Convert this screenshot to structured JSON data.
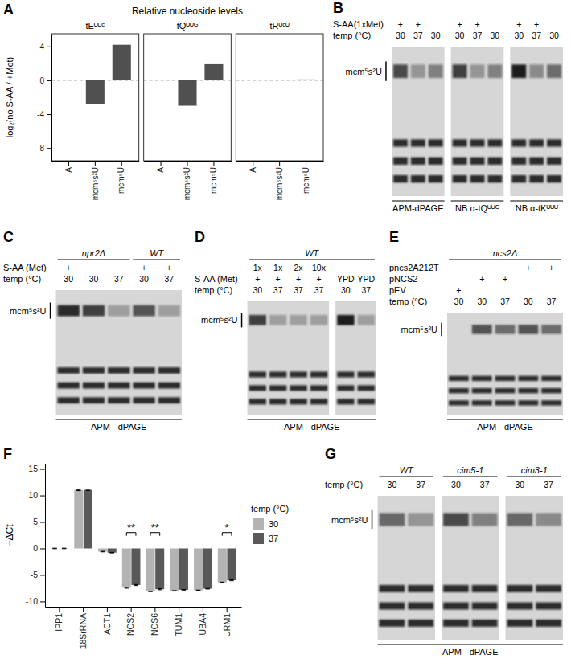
{
  "chart_data": [
    {
      "type": "bar",
      "panel": "A",
      "suptitle": "Relative nucleoside levels",
      "title": "tEᵁᵁᶜ",
      "ylabel": "log₂(no S-AA / +Met)",
      "categories": [
        "A",
        "mcm⁵s²U",
        "mcm⁵U"
      ],
      "values": [
        0,
        -2.8,
        4.2
      ],
      "color": "#505050",
      "ylim": [
        -9.5,
        5.5
      ],
      "yticks": [
        -8,
        -4,
        0,
        4
      ],
      "reference_line": 0,
      "grid": false
    },
    {
      "type": "bar",
      "title": "tQᵁᵁᴳ",
      "categories": [
        "A",
        "mcm⁵s²U",
        "mcm⁵U"
      ],
      "values": [
        0,
        -3.0,
        1.9
      ],
      "color": "#505050",
      "ylim": [
        -9.5,
        5.5
      ],
      "reference_line": 0,
      "tick_labels": "x",
      "grid": false
    },
    {
      "type": "bar",
      "title": "tRᵁᶜᵁ",
      "categories": [
        "A",
        "mcm⁵s²U",
        "mcm⁵U"
      ],
      "values": [
        0,
        0,
        0.1
      ],
      "color": "#505050",
      "ylim": [
        -9.5,
        5.5
      ],
      "reference_line": 0,
      "tick_labels": "x",
      "grid": false
    },
    {
      "type": "bar",
      "panel": "F",
      "ylabel": "−ΔCt",
      "categories": [
        "IPP1",
        "18SrRNA",
        "ACT1",
        "NCS2",
        "NCS6",
        "TUM1",
        "UBA4",
        "URM1"
      ],
      "series": [
        {
          "name": "30",
          "color": "#b3b3b3",
          "values": [
            0,
            11,
            -0.6,
            -7.4,
            -8.1,
            -8.0,
            -7.9,
            -6.4
          ],
          "errors": [
            0.05,
            0.1,
            0.05,
            0.1,
            0.05,
            0.05,
            0.05,
            0.05
          ]
        },
        {
          "name": "37",
          "color": "#595959",
          "values": [
            0,
            11.05,
            -0.8,
            -6.9,
            -7.7,
            -7.8,
            -7.6,
            -6.0
          ],
          "errors": [
            0.05,
            0.1,
            0.05,
            0.1,
            0.1,
            0.05,
            0.05,
            0.1
          ]
        }
      ],
      "legend_title": "temp (°C)",
      "legend": "right",
      "ylim": [
        -11,
        16
      ],
      "yticks": [
        -10,
        -5,
        0,
        5,
        10,
        15
      ],
      "grid": false,
      "annotations": [
        {
          "category": "NCS2",
          "y": 3,
          "text": "**"
        },
        {
          "category": "NCS6",
          "y": 3,
          "text": "**"
        },
        {
          "category": "URM1",
          "y": 3,
          "text": "*"
        }
      ]
    }
  ],
  "gel_panels": [
    {
      "letter": "B",
      "band_label": "mcm⁵s²U",
      "rows": [
        {
          "label": "S-AA(1xMet)",
          "cells": [
            "+",
            "+",
            null,
            "+",
            "+",
            null,
            "+",
            "+",
            null
          ]
        },
        {
          "label": "temp (°C)",
          "cells": [
            "30",
            "37",
            "30",
            "30",
            "37",
            "30",
            "30",
            "37",
            "30"
          ]
        }
      ],
      "pieces": [
        {
          "caption": "APM-dPAGE",
          "band_intensity": [
            0.75,
            0.35,
            0.45
          ]
        },
        {
          "caption": "NB α-tQᵁᵁᴳ",
          "band_intensity": [
            0.8,
            0.35,
            0.45
          ]
        },
        {
          "caption": "NB α-tKᵁᵁᵁ",
          "band_intensity": [
            1,
            0.4,
            0.55
          ]
        }
      ]
    },
    {
      "letter": "C",
      "band_label": "mcm⁵s²U",
      "caption": "APM - dPAGE",
      "groups": [
        {
          "label": "npr2Δ",
          "lanes": 3
        },
        {
          "label": "WT",
          "lanes": 2
        }
      ],
      "rows": [
        {
          "label": "S-AA (Met)",
          "cells": [
            "+",
            null,
            null,
            "+",
            "+"
          ]
        },
        {
          "label": "temp (°C)",
          "cells": [
            "30",
            "30",
            "37",
            "30",
            "37"
          ]
        }
      ],
      "pieces": [
        {
          "band_intensity": [
            0.9,
            0.8,
            0.3,
            0.7,
            0.3
          ]
        }
      ]
    },
    {
      "letter": "D",
      "band_label": "mcm⁵s²U",
      "caption": "APM - dPAGE",
      "groups": [
        {
          "label": "WT",
          "lanes": 6
        }
      ],
      "rows": [
        {
          "label": null,
          "cells": [
            "1x",
            "1x",
            "2x",
            "10x",
            null,
            null
          ]
        },
        {
          "label": "S-AA (Met)",
          "cells": [
            "+",
            "+",
            "+",
            "+",
            "YPD",
            "YPD"
          ]
        },
        {
          "label": "temp (°C)",
          "cells": [
            "30",
            "37",
            "37",
            "37",
            "30",
            "37"
          ]
        }
      ],
      "pieces": [
        {
          "band_intensity": [
            0.8,
            0.3,
            0.3,
            0.3
          ]
        },
        {
          "band_intensity": [
            1,
            0.3
          ]
        }
      ]
    },
    {
      "letter": "E",
      "band_label": "mcm⁵s²U",
      "caption": "APM - dPAGE",
      "groups": [
        {
          "label": "ncs2Δ",
          "lanes": 5
        }
      ],
      "rows": [
        {
          "label": "pncs2A212T",
          "cells": [
            null,
            null,
            null,
            "+",
            "+"
          ]
        },
        {
          "label": "pNCS2",
          "cells": [
            null,
            "+",
            "+",
            null,
            null
          ]
        },
        {
          "label": "pEV",
          "cells": [
            "+",
            null,
            null,
            null,
            null
          ]
        },
        {
          "label": "temp (°C)",
          "cells": [
            "30",
            "30",
            "37",
            "30",
            "37"
          ]
        }
      ],
      "pieces": [
        {
          "band_intensity": [
            0,
            0.7,
            0.55,
            0.7,
            0.55
          ]
        }
      ]
    },
    {
      "letter": "G",
      "band_label": "mcm⁵s²U",
      "caption": "APM - dPAGE",
      "groups": [
        {
          "label": "WT",
          "lanes": 2
        },
        {
          "label": "cim5-1",
          "lanes": 2
        },
        {
          "label": "cim3-1",
          "lanes": 2
        }
      ],
      "rows": [
        {
          "label": "temp (°C)",
          "cells": [
            "30",
            "37",
            "30",
            "37",
            "30",
            "37"
          ]
        }
      ],
      "pieces": [
        {
          "band_intensity": [
            0.6,
            0.35
          ]
        },
        {
          "band_intensity": [
            0.75,
            0.45
          ]
        },
        {
          "band_intensity": [
            0.6,
            0.4
          ]
        }
      ]
    }
  ]
}
